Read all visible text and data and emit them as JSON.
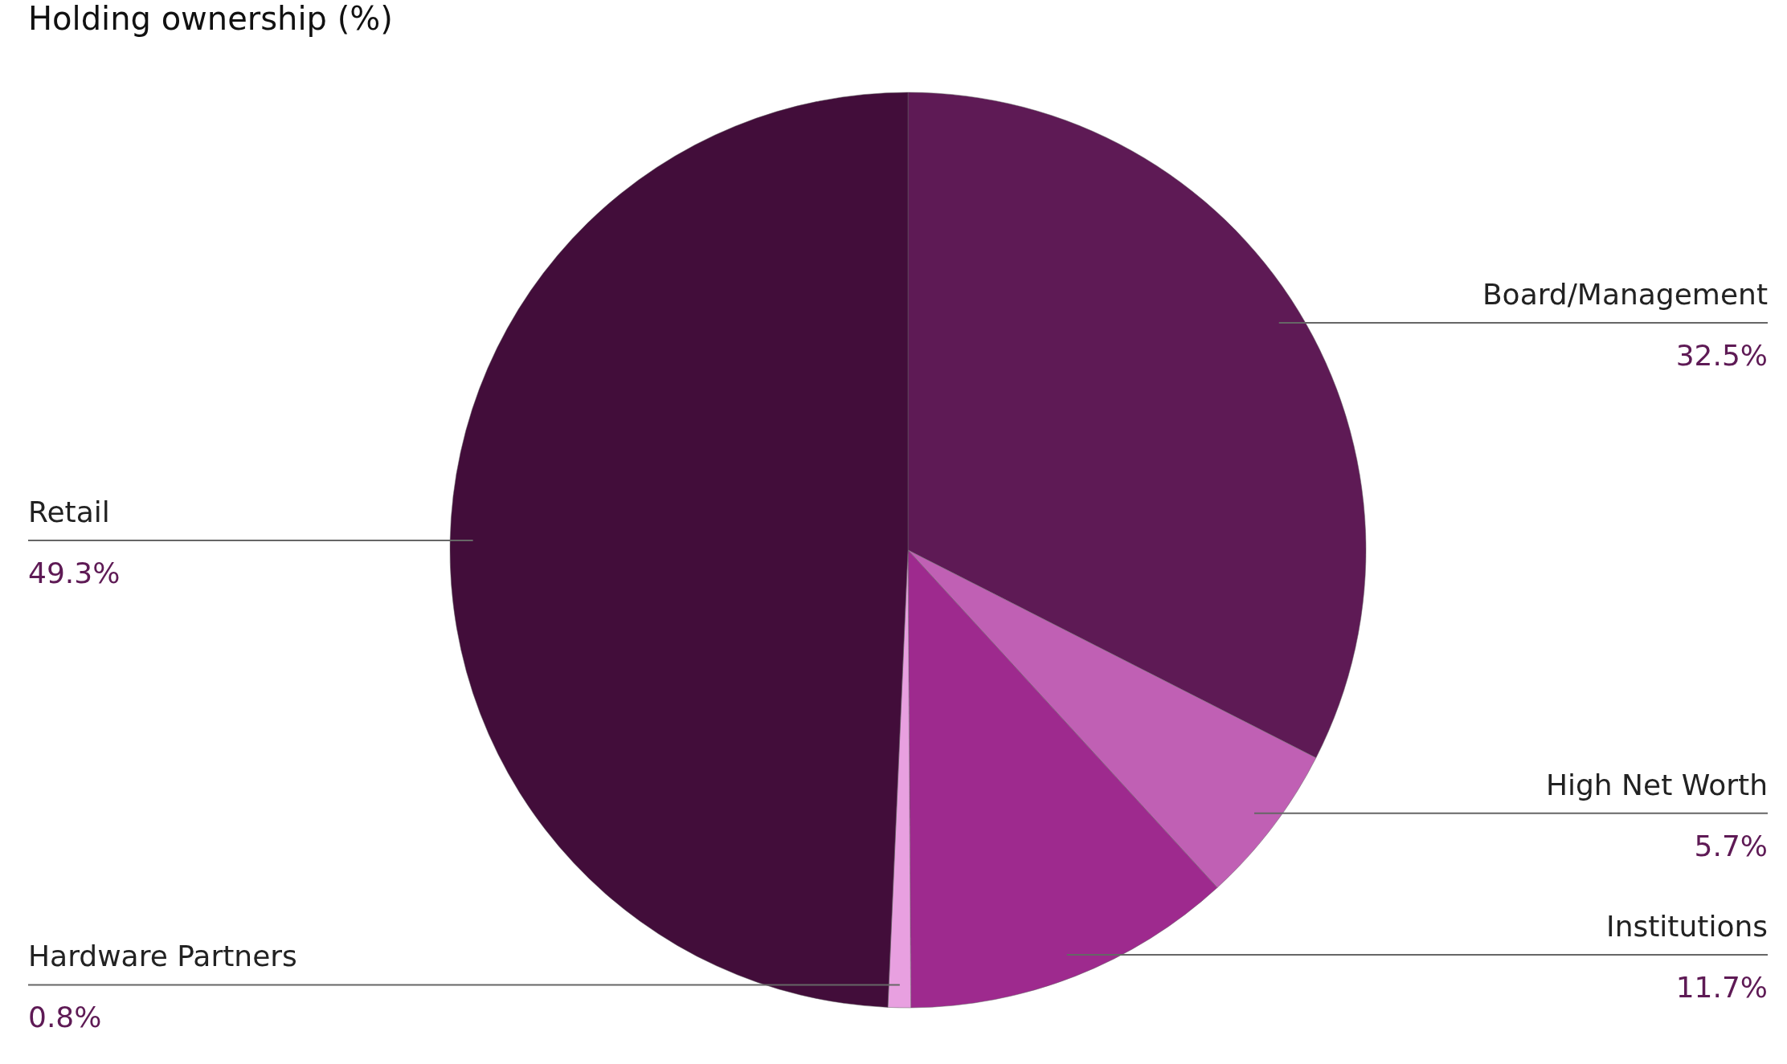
{
  "chart_data": {
    "type": "pie",
    "title": "Holding ownership (%)",
    "categories": [
      "Board/Management",
      "High Net Worth",
      "Institutions",
      "Hardware Partners",
      "Retail"
    ],
    "values": [
      32.5,
      5.7,
      11.7,
      0.8,
      49.3
    ],
    "colors": [
      "#5e1a55",
      "#c060b4",
      "#9e2a8e",
      "#e8a0e0",
      "#420d3a"
    ],
    "value_labels": [
      "32.5%",
      "5.7%",
      "11.7%",
      "0.8%",
      "49.3%"
    ],
    "legend": false
  }
}
